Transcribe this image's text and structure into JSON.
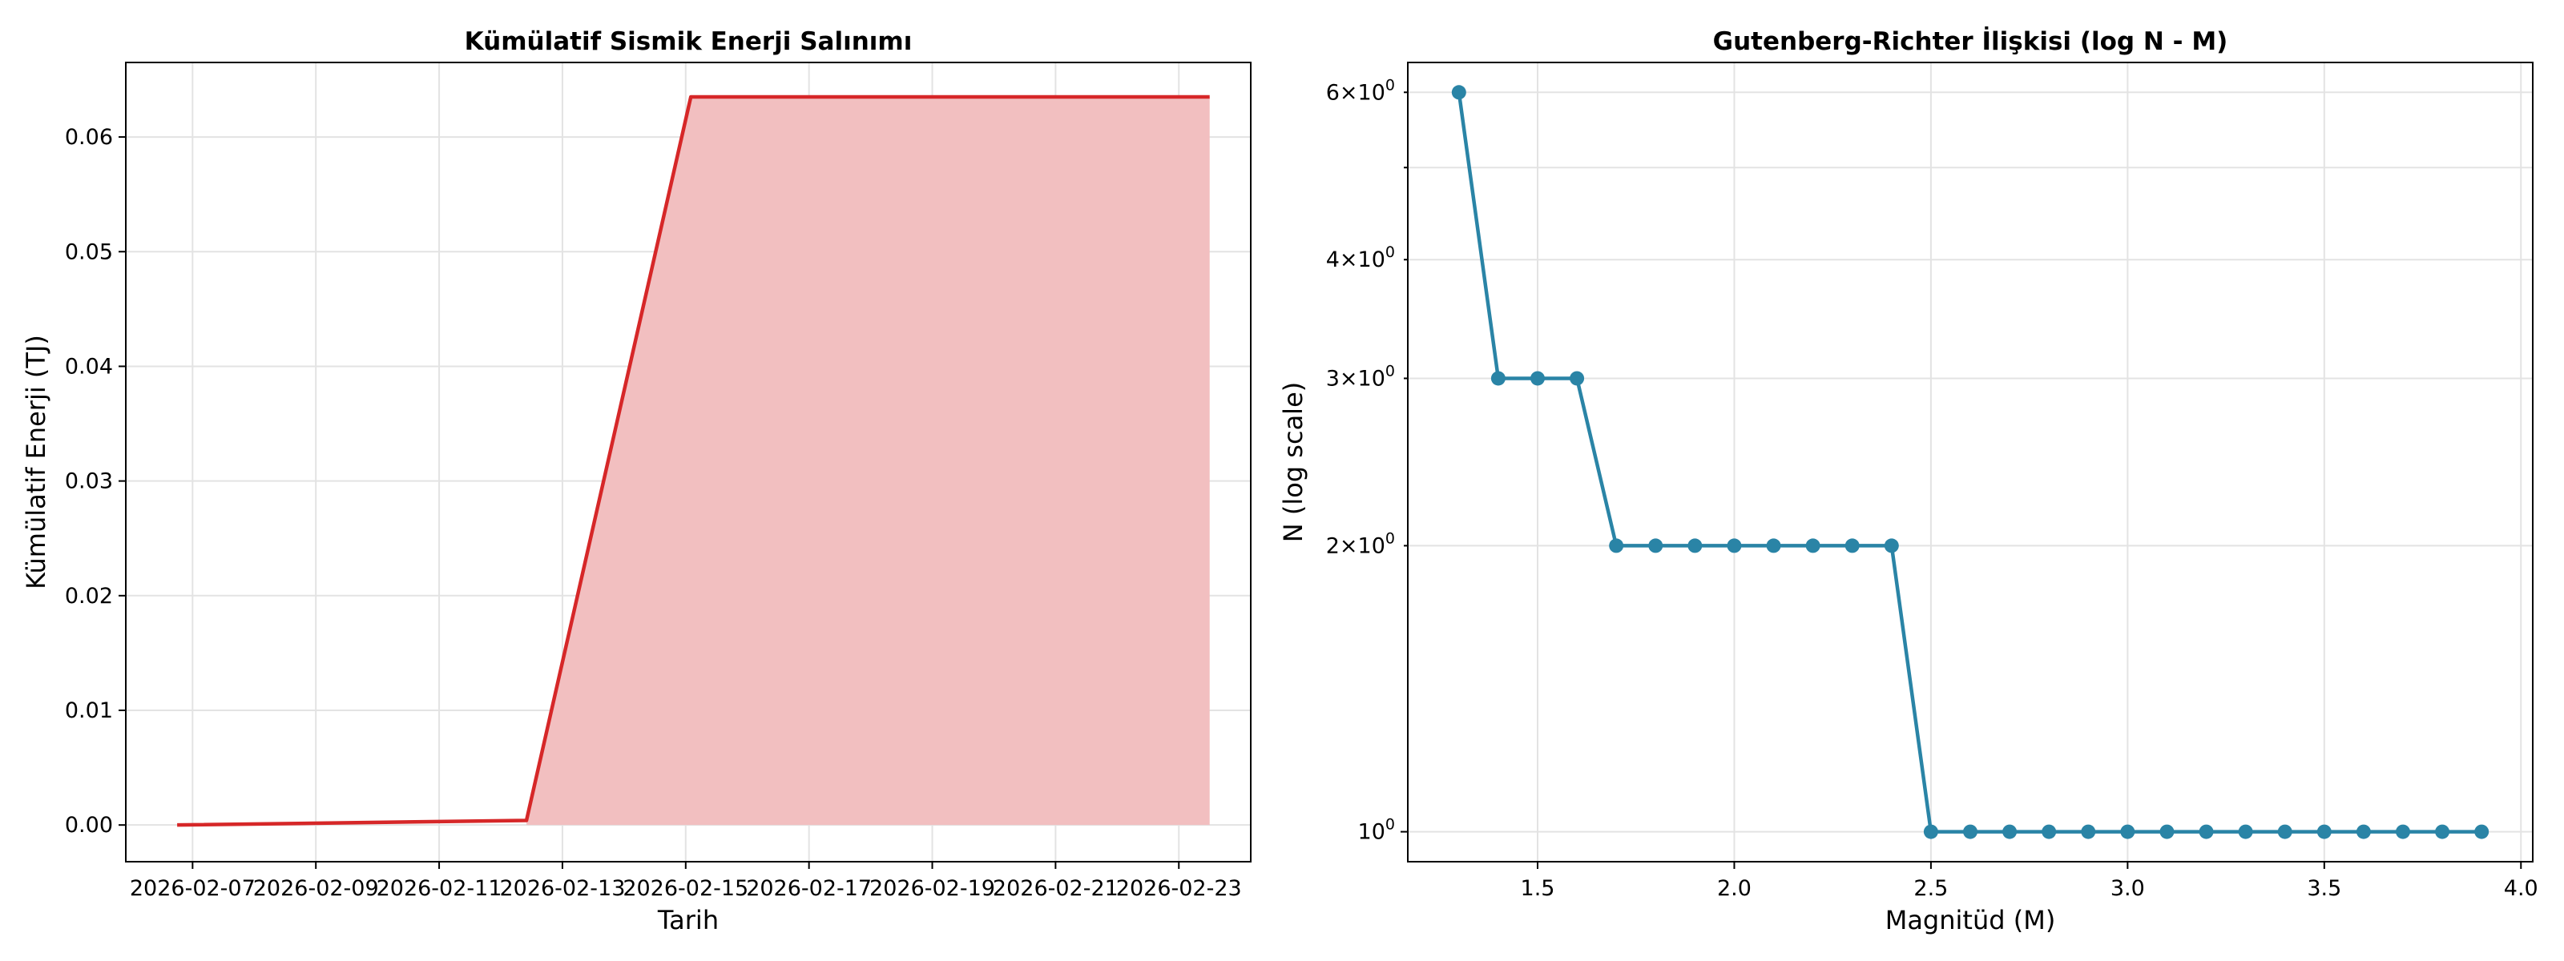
{
  "chart_data": [
    {
      "type": "area",
      "title": "Kümülatif Sismik Enerji Salınımı",
      "xlabel": "Tarih",
      "ylabel": "Kümülatif Enerji (TJ)",
      "x_ticks": [
        "2026-02-07",
        "2026-02-09",
        "2026-02-11",
        "2026-02-13",
        "2026-02-15",
        "2026-02-17",
        "2026-02-19",
        "2026-02-21",
        "2026-02-23"
      ],
      "y_ticks": [
        "0.00",
        "0.01",
        "0.02",
        "0.03",
        "0.04",
        "0.05",
        "0.06"
      ],
      "xlim": [
        "2026-02-05T22:00",
        "2026-02-24T04:00"
      ],
      "ylim": [
        -0.0032,
        0.0665
      ],
      "grid": true,
      "line_color": "#d62728",
      "fill_color": "#f2bfc0",
      "fill_start": "2026-02-12T10:00",
      "x": [
        "2026-02-06T18:00",
        "2026-02-12T10:00",
        "2026-02-15T02:00",
        "2026-02-23T12:00"
      ],
      "y": [
        0.0,
        0.0004,
        0.0635,
        0.0635
      ]
    },
    {
      "type": "line",
      "title": "Gutenberg-Richter İlişkisi (log N - M)",
      "xlabel": "Magnitüd (M)",
      "ylabel": "N (log scale)",
      "yscale": "log",
      "x_ticks": [
        "1.5",
        "2.0",
        "2.5",
        "3.0",
        "3.5",
        "4.0"
      ],
      "y_ticks": [
        {
          "base": "10",
          "exp": "0",
          "mantissa": ""
        },
        {
          "base": "10",
          "exp": "0",
          "mantissa": "2×"
        },
        {
          "base": "10",
          "exp": "0",
          "mantissa": "3×"
        },
        {
          "base": "10",
          "exp": "0",
          "mantissa": "4×"
        },
        {
          "base": "10",
          "exp": "0",
          "mantissa": "6×"
        }
      ],
      "xlim": [
        1.17,
        4.03
      ],
      "ylim": [
        0.93,
        6.45
      ],
      "grid": true,
      "line_color": "#2a84a6",
      "x": [
        1.3,
        1.4,
        1.5,
        1.6,
        1.7,
        1.8,
        1.9,
        2.0,
        2.1,
        2.2,
        2.3,
        2.4,
        2.5,
        2.6,
        2.7,
        2.8,
        2.9,
        3.0,
        3.1,
        3.2,
        3.3,
        3.4,
        3.5,
        3.6,
        3.7,
        3.8,
        3.9
      ],
      "y": [
        6,
        3,
        3,
        3,
        2,
        2,
        2,
        2,
        2,
        2,
        2,
        2,
        1,
        1,
        1,
        1,
        1,
        1,
        1,
        1,
        1,
        1,
        1,
        1,
        1,
        1,
        1
      ]
    }
  ]
}
